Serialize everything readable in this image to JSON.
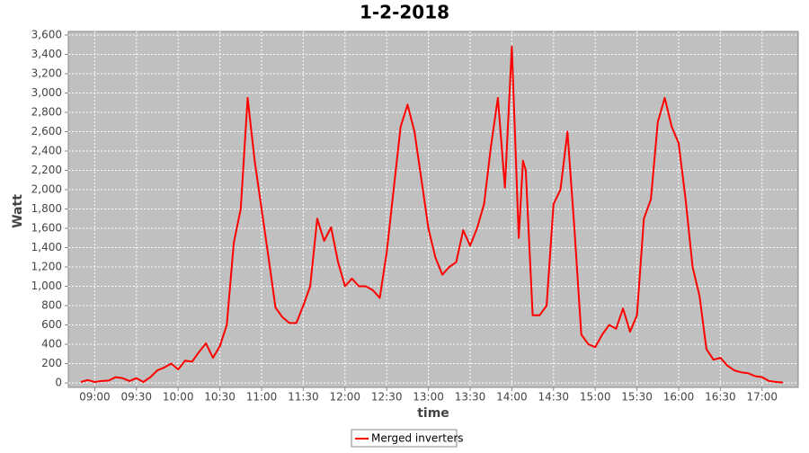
{
  "chart_data": {
    "type": "line",
    "title": "1-2-2018",
    "x_label": "time",
    "y_label": "Watt",
    "x": [
      "08:50",
      "08:55",
      "09:00",
      "09:05",
      "09:10",
      "09:15",
      "09:20",
      "09:25",
      "09:30",
      "09:35",
      "09:40",
      "09:45",
      "09:50",
      "09:55",
      "10:00",
      "10:05",
      "10:10",
      "10:15",
      "10:20",
      "10:25",
      "10:30",
      "10:35",
      "10:40",
      "10:45",
      "10:50",
      "10:55",
      "11:00",
      "11:05",
      "11:10",
      "11:15",
      "11:20",
      "11:25",
      "11:30",
      "11:35",
      "11:40",
      "11:45",
      "11:50",
      "11:55",
      "12:00",
      "12:05",
      "12:10",
      "12:15",
      "12:20",
      "12:25",
      "12:30",
      "12:35",
      "12:40",
      "12:45",
      "12:50",
      "12:55",
      "13:00",
      "13:05",
      "13:10",
      "13:15",
      "13:20",
      "13:25",
      "13:30",
      "13:35",
      "13:40",
      "13:45",
      "13:50",
      "13:55",
      "14:00",
      "14:05",
      "14:08",
      "14:10",
      "14:15",
      "14:20",
      "14:25",
      "14:30",
      "14:35",
      "14:40",
      "14:45",
      "14:50",
      "14:55",
      "15:00",
      "15:05",
      "15:10",
      "15:15",
      "15:20",
      "15:25",
      "15:30",
      "15:35",
      "15:40",
      "15:45",
      "15:50",
      "15:55",
      "16:00",
      "16:05",
      "16:10",
      "16:15",
      "16:20",
      "16:25",
      "16:30",
      "16:35",
      "16:40",
      "16:45",
      "16:50",
      "16:55",
      "17:00",
      "17:05",
      "17:10",
      "17:15"
    ],
    "series": [
      {
        "name": "Merged inverters",
        "color": "#ff0000",
        "values": [
          10,
          30,
          10,
          20,
          25,
          60,
          50,
          20,
          50,
          10,
          60,
          130,
          160,
          200,
          140,
          230,
          220,
          320,
          410,
          260,
          380,
          600,
          1450,
          1800,
          2950,
          2300,
          1800,
          1300,
          780,
          680,
          620,
          620,
          800,
          1000,
          1700,
          1470,
          1610,
          1250,
          1000,
          1080,
          1000,
          1000,
          960,
          880,
          1350,
          2000,
          2650,
          2880,
          2600,
          2100,
          1600,
          1300,
          1120,
          1200,
          1250,
          1580,
          1420,
          1600,
          1850,
          2450,
          2950,
          2020,
          3480,
          1500,
          2300,
          2200,
          700,
          700,
          800,
          1850,
          2000,
          2600,
          1600,
          500,
          400,
          370,
          500,
          600,
          560,
          770,
          530,
          700,
          1700,
          1900,
          2700,
          2950,
          2650,
          2480,
          1900,
          1200,
          900,
          350,
          240,
          260,
          180,
          130,
          110,
          100,
          70,
          60,
          20,
          10,
          5
        ]
      }
    ],
    "xlim": [
      "08:41",
      "17:26"
    ],
    "xticks": [
      "09:00",
      "09:30",
      "10:00",
      "10:30",
      "11:00",
      "11:30",
      "12:00",
      "12:30",
      "13:00",
      "13:30",
      "14:00",
      "14:30",
      "15:00",
      "15:30",
      "16:00",
      "16:30",
      "17:00"
    ],
    "ylim": [
      -46,
      3637
    ],
    "yticks": [
      0,
      200,
      400,
      600,
      800,
      {
        "value": 1000,
        "label": "1,000"
      },
      {
        "value": 1200,
        "label": "1,200"
      },
      {
        "value": 1400,
        "label": "1,400"
      },
      {
        "value": 1600,
        "label": "1,600"
      },
      {
        "value": 1800,
        "label": "1,800"
      },
      {
        "value": 2000,
        "label": "2,000"
      },
      {
        "value": 2200,
        "label": "2,200"
      },
      {
        "value": 2400,
        "label": "2,400"
      },
      {
        "value": 2600,
        "label": "2,600"
      },
      {
        "value": 2800,
        "label": "2,800"
      },
      {
        "value": 3000,
        "label": "3,000"
      },
      {
        "value": 3200,
        "label": "3,200"
      },
      {
        "value": 3400,
        "label": "3,400"
      },
      {
        "value": 3600,
        "label": "3,600"
      }
    ],
    "grid": true,
    "legend": "bottom"
  }
}
